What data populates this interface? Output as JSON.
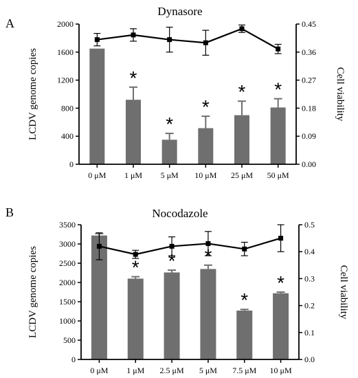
{
  "colors": {
    "bar": "#6f6f6f",
    "line": "#000000",
    "axis": "#000000"
  },
  "chart_data": [
    {
      "type": "bar",
      "panel_label": "A",
      "title": "Dynasore",
      "categories": [
        "0 μM",
        "1 μM",
        "5 μM",
        "10 μM",
        "25 μM",
        "50 μM"
      ],
      "ylabel": "LCDV genome copies",
      "ylim": [
        0,
        2000
      ],
      "yticks": [
        0,
        400,
        800,
        1200,
        1600,
        2000
      ],
      "ytick_labels": [
        "0",
        "400",
        "800",
        "1200",
        "1600",
        "2000"
      ],
      "y2label": "Cell viability",
      "y2lim": [
        0,
        0.45
      ],
      "y2ticks": [
        0,
        0.09,
        0.18,
        0.27,
        0.36,
        0.45
      ],
      "y2tick_labels": [
        "0.00",
        "0.09",
        "0.18",
        "0.27",
        "0.36",
        "0.45"
      ],
      "series": [
        {
          "type": "bar",
          "axis": "left",
          "values": [
            1650,
            920,
            350,
            515,
            700,
            810
          ],
          "errors": [
            0,
            180,
            90,
            170,
            200,
            125
          ]
        },
        {
          "type": "line",
          "axis": "right",
          "values": [
            0.4,
            0.415,
            0.4,
            0.39,
            0.435,
            0.37
          ],
          "errors": [
            0.02,
            0.02,
            0.04,
            0.04,
            0.012,
            0.015
          ]
        }
      ],
      "significance": [
        "",
        "*",
        "*",
        "*",
        "*",
        "*"
      ]
    },
    {
      "type": "bar",
      "panel_label": "B",
      "title": "Nocodazole",
      "categories": [
        "0 μM",
        "1 μM",
        "2.5 μM",
        "5 μM",
        "7.5 μM",
        "10 μM"
      ],
      "ylabel": "LCDV genome copies",
      "ylim": [
        0,
        3500
      ],
      "yticks": [
        0,
        500,
        1000,
        1500,
        2000,
        2500,
        3000,
        3500
      ],
      "ytick_labels": [
        "0",
        "500",
        "1000",
        "1500",
        "2000",
        "2500",
        "3000",
        "3500"
      ],
      "y2label": "Cell viability",
      "y2lim": [
        0,
        0.5
      ],
      "y2ticks": [
        0,
        0.1,
        0.2,
        0.3,
        0.4,
        0.5
      ],
      "y2tick_labels": [
        "0.0",
        "0.1",
        "0.2",
        "0.3",
        "0.4",
        "0.5"
      ],
      "series": [
        {
          "type": "bar",
          "axis": "left",
          "values": [
            3220,
            2100,
            2260,
            2350,
            1270,
            1720
          ],
          "errors": [
            50,
            50,
            60,
            100,
            30,
            30
          ]
        },
        {
          "type": "line",
          "axis": "right",
          "values": [
            0.42,
            0.39,
            0.42,
            0.43,
            0.41,
            0.45
          ],
          "errors": [
            0.05,
            0.015,
            0.035,
            0.045,
            0.025,
            0.05
          ]
        }
      ],
      "significance": [
        "",
        "*",
        "*",
        "*",
        "*",
        "*"
      ]
    }
  ]
}
